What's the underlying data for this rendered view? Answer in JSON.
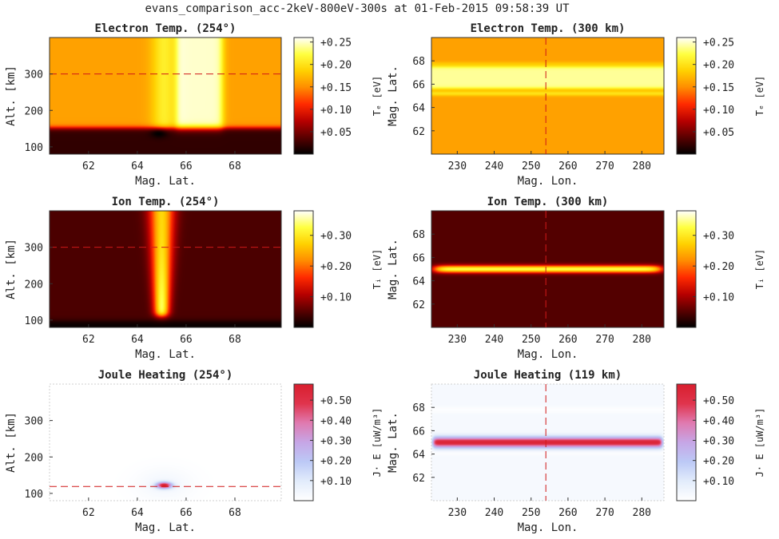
{
  "suptitle": "evans_comparison_acc-2keV-800eV-300s at 01-Feb-2015 09:58:39 UT",
  "colormaps": {
    "hot": [
      "#000000",
      "#5a0000",
      "#b80000",
      "#ff2a00",
      "#ff8c00",
      "#ffd000",
      "#ffff40",
      "#ffffff"
    ],
    "bwr": [
      "#ffffff",
      "#e2ecfb",
      "#bcc9f6",
      "#c6a6e6",
      "#e07ab0",
      "#e0344c",
      "#d81e2e"
    ]
  },
  "panels": [
    {
      "title": "Electron Temp. (254°)",
      "xlabel": "Mag. Lat.",
      "ylabel": "Alt. [km]",
      "xlim": [
        60.4,
        69.9
      ],
      "ylim": [
        80,
        400
      ],
      "xticks": [
        "62",
        "64",
        "66",
        "68"
      ],
      "yticks": [
        "100",
        "200",
        "300"
      ],
      "cbar": {
        "label": "Tₑ [eV]",
        "ticks": [
          "+0.05",
          "+0.10",
          "+0.15",
          "+0.20",
          "+0.25"
        ],
        "vmin": 0.0,
        "vmax": 0.26,
        "cmap": "hot"
      },
      "refline": {
        "orient": "h",
        "value": 300
      },
      "field": "te_alt"
    },
    {
      "title": "Electron Temp. (300 km)",
      "xlabel": "Mag. Lon.",
      "ylabel": "Mag. Lat.",
      "xlim": [
        223,
        286
      ],
      "ylim": [
        60,
        70
      ],
      "xticks": [
        "230",
        "240",
        "250",
        "260",
        "270",
        "280"
      ],
      "yticks": [
        "62",
        "64",
        "66",
        "68"
      ],
      "cbar": {
        "label": "Tₑ [eV]",
        "ticks": [
          "+0.05",
          "+0.10",
          "+0.15",
          "+0.20",
          "+0.25"
        ],
        "vmin": 0.0,
        "vmax": 0.26,
        "cmap": "hot"
      },
      "refline": {
        "orient": "v",
        "value": 254
      },
      "field": "te_map"
    },
    {
      "title": "Ion Temp. (254°)",
      "xlabel": "Mag. Lat.",
      "ylabel": "Alt. [km]",
      "xlim": [
        60.4,
        69.9
      ],
      "ylim": [
        80,
        400
      ],
      "xticks": [
        "62",
        "64",
        "66",
        "68"
      ],
      "yticks": [
        "100",
        "200",
        "300"
      ],
      "cbar": {
        "label": "Tᵢ [eV]",
        "ticks": [
          "+0.10",
          "+0.20",
          "+0.30"
        ],
        "vmin": 0.0,
        "vmax": 0.38,
        "cmap": "hot"
      },
      "refline": {
        "orient": "h",
        "value": 300
      },
      "field": "ti_alt"
    },
    {
      "title": "Ion Temp. (300 km)",
      "xlabel": "Mag. Lon.",
      "ylabel": "Mag. Lat.",
      "xlim": [
        223,
        286
      ],
      "ylim": [
        60,
        70
      ],
      "xticks": [
        "230",
        "240",
        "250",
        "260",
        "270",
        "280"
      ],
      "yticks": [
        "62",
        "64",
        "66",
        "68"
      ],
      "cbar": {
        "label": "Tᵢ [eV]",
        "ticks": [
          "+0.10",
          "+0.20",
          "+0.30"
        ],
        "vmin": 0.0,
        "vmax": 0.38,
        "cmap": "hot"
      },
      "refline": {
        "orient": "v",
        "value": 254
      },
      "field": "ti_map"
    },
    {
      "title": "Joule Heating (254°)",
      "xlabel": "Mag. Lat.",
      "ylabel": "Alt. [km]",
      "xlim": [
        60.4,
        69.9
      ],
      "ylim": [
        80,
        400
      ],
      "xticks": [
        "62",
        "64",
        "66",
        "68"
      ],
      "yticks": [
        "100",
        "200",
        "300"
      ],
      "cbar": {
        "label": "J· E [uW/m³]",
        "ticks": [
          "+0.10",
          "+0.20",
          "+0.30",
          "+0.40",
          "+0.50"
        ],
        "vmin": 0.0,
        "vmax": 0.58,
        "cmap": "bwr"
      },
      "refline": {
        "orient": "h",
        "value": 119
      },
      "field": "jh_alt"
    },
    {
      "title": "Joule Heating (119 km)",
      "xlabel": "Mag. Lon.",
      "ylabel": "Mag. Lat.",
      "xlim": [
        223,
        286
      ],
      "ylim": [
        60,
        70
      ],
      "xticks": [
        "230",
        "240",
        "250",
        "260",
        "270",
        "280"
      ],
      "yticks": [
        "62",
        "64",
        "66",
        "68"
      ],
      "cbar": {
        "label": "J· E [uW/m³]",
        "ticks": [
          "+0.10",
          "+0.20",
          "+0.30",
          "+0.40",
          "+0.50"
        ],
        "vmin": 0.0,
        "vmax": 0.58,
        "cmap": "bwr"
      },
      "refline": {
        "orient": "v",
        "value": 254
      },
      "field": "jh_map"
    }
  ],
  "chart_data": [
    {
      "type": "heatmap",
      "title": "Electron Temp. (254°)",
      "xlabel": "Mag. Lat.",
      "ylabel": "Alt. [km]",
      "xlim": [
        60.4,
        69.9
      ],
      "ylim": [
        80,
        400
      ],
      "colorbar_label": "Tₑ [eV]",
      "colorbar_range": [
        0.0,
        0.26
      ],
      "reference_line": {
        "altitude_km": 300
      },
      "features": [
        {
          "region": "below ~150 km",
          "value_eV": 0.02
        },
        {
          "region": "background above ~160 km",
          "value_eV": 0.16
        },
        {
          "region": "Mag. Lat. 64.8-65.6",
          "value_eV": 0.21
        },
        {
          "region": "Mag. Lat. 65.6-67.5",
          "value_eV": 0.25
        }
      ]
    },
    {
      "type": "heatmap",
      "title": "Electron Temp. (300 km)",
      "xlabel": "Mag. Lon.",
      "ylabel": "Mag. Lat.",
      "xlim": [
        223,
        286
      ],
      "ylim": [
        60,
        70
      ],
      "colorbar_label": "Tₑ [eV]",
      "colorbar_range": [
        0.0,
        0.26
      ],
      "reference_line": {
        "mag_lon": 254
      },
      "features": [
        {
          "region": "background",
          "value_eV": 0.16
        },
        {
          "region": "Mag. Lat. 65.5-67.5 band",
          "value_eV": 0.24
        },
        {
          "region": "Mag. Lat. 65.0-65.4 band",
          "value_eV": 0.2
        }
      ]
    },
    {
      "type": "heatmap",
      "title": "Ion Temp. (254°)",
      "xlabel": "Mag. Lat.",
      "ylabel": "Alt. [km]",
      "xlim": [
        60.4,
        69.9
      ],
      "ylim": [
        80,
        400
      ],
      "colorbar_label": "Tᵢ [eV]",
      "colorbar_range": [
        0.0,
        0.38
      ],
      "reference_line": {
        "altitude_km": 300
      },
      "features": [
        {
          "region": "background",
          "value_eV": 0.05
        },
        {
          "region": "column at Mag. Lat. 65.0, peak near 130 km",
          "value_eV": 0.36
        }
      ]
    },
    {
      "type": "heatmap",
      "title": "Ion Temp. (300 km)",
      "xlabel": "Mag. Lon.",
      "ylabel": "Mag. Lat.",
      "xlim": [
        223,
        286
      ],
      "ylim": [
        60,
        70
      ],
      "colorbar_label": "Tᵢ [eV]",
      "colorbar_range": [
        0.0,
        0.38
      ],
      "reference_line": {
        "mag_lon": 254
      },
      "features": [
        {
          "region": "background",
          "value_eV": 0.05
        },
        {
          "region": "band at Mag. Lat. 65.0",
          "value_eV": 0.3
        }
      ]
    },
    {
      "type": "heatmap",
      "title": "Joule Heating (254°)",
      "xlabel": "Mag. Lat.",
      "ylabel": "Alt. [km]",
      "xlim": [
        60.4,
        69.9
      ],
      "ylim": [
        80,
        400
      ],
      "colorbar_label": "J· E [uW/m³]",
      "colorbar_range": [
        0.0,
        0.58
      ],
      "reference_line": {
        "altitude_km": 119
      },
      "features": [
        {
          "region": "background",
          "value": 0.0
        },
        {
          "region": "blob at Mag. Lat. 65.1, altitude 122 km",
          "value": 0.55
        }
      ]
    },
    {
      "type": "heatmap",
      "title": "Joule Heating (119 km)",
      "xlabel": "Mag. Lon.",
      "ylabel": "Mag. Lat.",
      "xlim": [
        223,
        286
      ],
      "ylim": [
        60,
        70
      ],
      "colorbar_label": "J· E [uW/m³]",
      "colorbar_range": [
        0.0,
        0.58
      ],
      "reference_line": {
        "mag_lon": 254
      },
      "features": [
        {
          "region": "background",
          "value": 0.03
        },
        {
          "region": "band at Mag. Lat. 65.0",
          "value": 0.55
        }
      ]
    }
  ]
}
